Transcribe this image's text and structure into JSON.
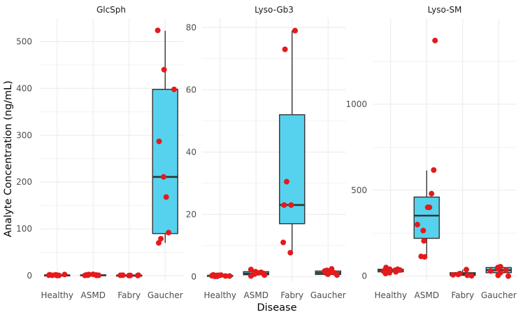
{
  "chart_data": {
    "type": "boxplot+jitter",
    "xlabel": "Disease",
    "ylabel": "Analyte Concentration (ng/mL)",
    "categories": [
      "Healthy",
      "ASMD",
      "Fabry",
      "Gaucher"
    ],
    "colors": {
      "box_fill": "#56d2ee",
      "box_line": "#333333",
      "point": "#e41a1c",
      "grid": "#ebebeb"
    },
    "panels": [
      {
        "title": "GlcSph",
        "ylim": [
          -12,
          550
        ],
        "yticks": [
          0,
          100,
          200,
          300,
          400,
          500
        ],
        "boxes": [
          {
            "category": "Healthy",
            "q1": 0.3,
            "median": 0.8,
            "q3": 1.4,
            "whisker_low": 0.1,
            "whisker_high": 2.5
          },
          {
            "category": "ASMD",
            "q1": 0.4,
            "median": 1.0,
            "q3": 1.8,
            "whisker_low": 0.1,
            "whisker_high": 3.0
          },
          {
            "category": "Fabry",
            "q1": 0.2,
            "median": 0.5,
            "q3": 0.9,
            "whisker_low": 0.1,
            "whisker_high": 1.5
          },
          {
            "category": "Gaucher",
            "q1": 90,
            "median": 211,
            "q3": 398,
            "whisker_low": 70,
            "whisker_high": 523
          }
        ],
        "points": [
          {
            "category": "Healthy",
            "y": [
              1.2,
              0.5,
              2.0,
              0.8,
              1.5,
              0.3,
              1.0,
              2.5,
              0.6,
              1.8
            ]
          },
          {
            "category": "ASMD",
            "y": [
              2.5,
              0.8,
              1.5,
              0.5,
              3.0,
              1.2,
              0.7,
              1.8
            ]
          },
          {
            "category": "Fabry",
            "y": [
              0.5,
              0.3,
              1.0,
              0.8,
              0.4,
              1.2
            ]
          },
          {
            "category": "Gaucher",
            "y": [
              524,
              440,
              398,
              287,
              211,
              168,
              92,
              79,
              70
            ]
          }
        ]
      },
      {
        "title": "Lyso-Gb3",
        "ylim": [
          -1.5,
          83
        ],
        "yticks": [
          0,
          20,
          40,
          60,
          80
        ],
        "boxes": [
          {
            "category": "Healthy",
            "q1": 0.1,
            "median": 0.25,
            "q3": 0.4,
            "whisker_low": 0.0,
            "whisker_high": 0.6
          },
          {
            "category": "ASMD",
            "q1": 0.6,
            "median": 1.0,
            "q3": 1.6,
            "whisker_low": 0.1,
            "whisker_high": 2.3
          },
          {
            "category": "Fabry",
            "q1": 17,
            "median": 23,
            "q3": 52,
            "whisker_low": 7.7,
            "whisker_high": 79
          },
          {
            "category": "Gaucher",
            "q1": 0.7,
            "median": 1.2,
            "q3": 1.8,
            "whisker_low": 0.2,
            "whisker_high": 2.5
          }
        ],
        "points": [
          {
            "category": "Healthy",
            "y": [
              0.2,
              0.4,
              0.1,
              0.5,
              0.3,
              0.6,
              0.2,
              0.4,
              0.1,
              0.3
            ]
          },
          {
            "category": "ASMD",
            "y": [
              0.5,
              2.3,
              1.0,
              1.6,
              0.2,
              1.2,
              0.8,
              1.4
            ]
          },
          {
            "category": "Fabry",
            "y": [
              79,
              73,
              30.5,
              23,
              23,
              11,
              7.7
            ]
          },
          {
            "category": "Gaucher",
            "y": [
              2.5,
              1.5,
              0.5,
              1.8,
              1.0,
              0.8,
              2.0,
              1.2
            ]
          }
        ]
      },
      {
        "title": "Lyso-SM",
        "ylim": [
          -30,
          1500
        ],
        "yticks": [
          0,
          500,
          1000
        ],
        "boxes": [
          {
            "category": "Healthy",
            "q1": 25,
            "median": 35,
            "q3": 40,
            "whisker_low": 5,
            "whisker_high": 55
          },
          {
            "category": "ASMD",
            "q1": 220,
            "median": 352,
            "q3": 460,
            "whisker_low": 112,
            "whisker_high": 615
          },
          {
            "category": "Fabry",
            "q1": 5,
            "median": 12,
            "q3": 20,
            "whisker_low": 2,
            "whisker_high": 38
          },
          {
            "category": "Gaucher",
            "q1": 20,
            "median": 35,
            "q3": 50,
            "whisker_low": 5,
            "whisker_high": 55
          }
        ],
        "points": [
          {
            "category": "Healthy",
            "y": [
              40,
              20,
              50,
              15,
              35,
              30,
              45,
              25,
              40,
              35
            ]
          },
          {
            "category": "ASMD",
            "y": [
              1370,
              617,
              480,
              400,
              400,
              300,
              265,
              205,
              115,
              112
            ]
          },
          {
            "category": "Fabry",
            "y": [
              38,
              5,
              10,
              2,
              8,
              15
            ]
          },
          {
            "category": "Gaucher",
            "y": [
              55,
              45,
              30,
              0,
              50,
              35,
              20,
              5
            ]
          }
        ]
      }
    ]
  }
}
